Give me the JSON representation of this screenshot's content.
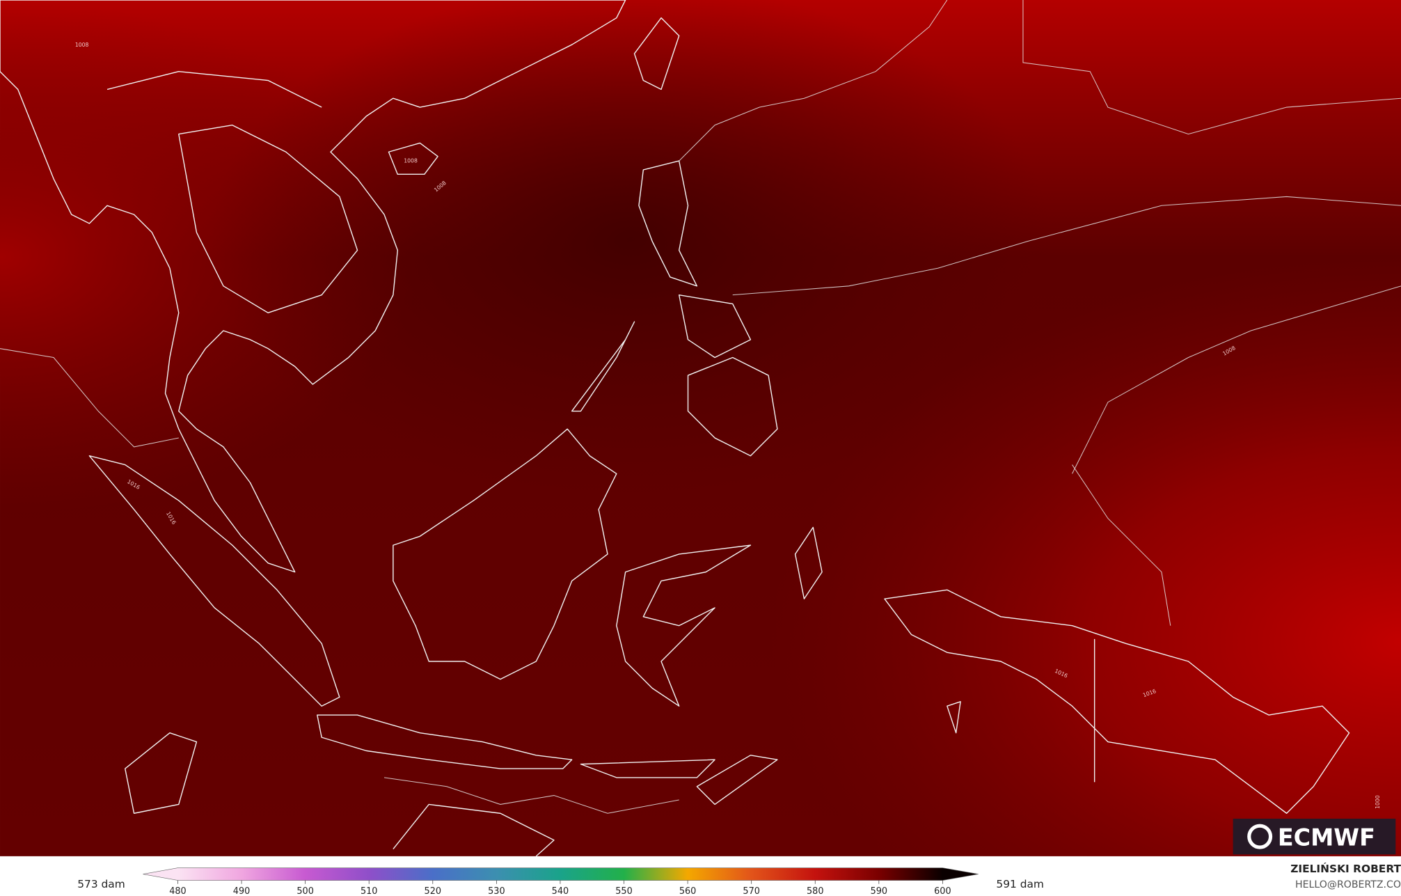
{
  "map": {
    "contour_labels": [
      "1008",
      "1008",
      "1008",
      "1008",
      "1016",
      "1016",
      "1016",
      "1016",
      "1000"
    ]
  },
  "colorbar": {
    "min_label": "573 dam",
    "max_label": "591 dam",
    "ticks": [
      480,
      490,
      500,
      510,
      520,
      530,
      540,
      550,
      560,
      570,
      580,
      590,
      600
    ],
    "colors": [
      "#fbe3f3",
      "#f0a6e0",
      "#c75ad1",
      "#8f4fc9",
      "#4a6fc8",
      "#3c8fb0",
      "#1aa38a",
      "#22b04a",
      "#f4a800",
      "#e2541a",
      "#c4120e",
      "#7a0000",
      "#0a0000"
    ]
  },
  "credit": {
    "author": "ZIELIŃSKI ROBERT",
    "email": "HELLO@ROBERTZ.CO"
  },
  "logo": "ECMWF"
}
